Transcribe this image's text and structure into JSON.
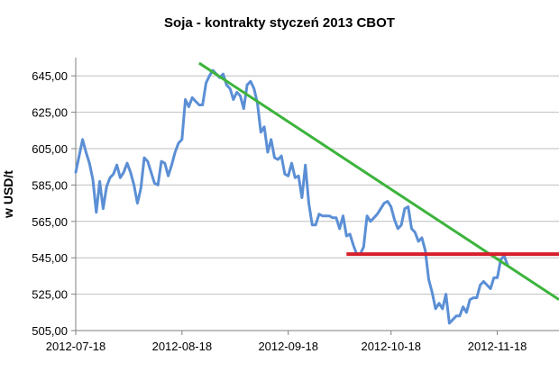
{
  "chart_data": {
    "type": "line",
    "title": "Soja - kontrakty styczeń 2013 CBOT",
    "xlabel": "",
    "ylabel": "w USD/t",
    "ylim": [
      505,
      655
    ],
    "yticks": [
      "645,00",
      "625,00",
      "605,00",
      "585,00",
      "565,00",
      "545,00",
      "525,00",
      "505,00"
    ],
    "ytick_values": [
      645,
      625,
      605,
      585,
      565,
      545,
      525,
      505
    ],
    "xticks": [
      "2012-07-18",
      "2012-08-18",
      "2012-09-18",
      "2012-10-18",
      "2012-11-18"
    ],
    "xlim": [
      "2012-07-18",
      "2012-12-06"
    ],
    "grid": "horizontal",
    "colors": {
      "price": "#5b8fd5",
      "trendline": "#3cb43c",
      "support": "#d61f2b",
      "grid": "#bfbfbf"
    },
    "series": [
      {
        "values": [
          [
            "2012-07-18",
            592
          ],
          [
            "2012-07-19",
            601
          ],
          [
            "2012-07-20",
            610
          ],
          [
            "2012-07-21",
            603
          ],
          [
            "2012-07-22",
            597
          ],
          [
            "2012-07-23",
            588
          ],
          [
            "2012-07-24",
            570
          ],
          [
            "2012-07-25",
            587
          ],
          [
            "2012-07-26",
            572
          ],
          [
            "2012-07-27",
            584
          ],
          [
            "2012-07-28",
            589
          ],
          [
            "2012-07-29",
            591
          ],
          [
            "2012-07-30",
            596
          ],
          [
            "2012-07-31",
            589
          ],
          [
            "2012-08-01",
            592
          ],
          [
            "2012-08-02",
            597
          ],
          [
            "2012-08-03",
            592
          ],
          [
            "2012-08-04",
            585
          ],
          [
            "2012-08-05",
            575
          ],
          [
            "2012-08-06",
            583
          ],
          [
            "2012-08-07",
            600
          ],
          [
            "2012-08-08",
            598
          ],
          [
            "2012-08-09",
            592
          ],
          [
            "2012-08-10",
            586
          ],
          [
            "2012-08-11",
            585
          ],
          [
            "2012-08-12",
            598
          ],
          [
            "2012-08-13",
            597
          ],
          [
            "2012-08-14",
            590
          ],
          [
            "2012-08-15",
            596
          ],
          [
            "2012-08-16",
            603
          ],
          [
            "2012-08-17",
            608
          ],
          [
            "2012-08-18",
            610
          ],
          [
            "2012-08-19",
            632
          ],
          [
            "2012-08-20",
            628
          ],
          [
            "2012-08-21",
            633
          ],
          [
            "2012-08-22",
            631
          ],
          [
            "2012-08-23",
            629
          ],
          [
            "2012-08-24",
            629
          ],
          [
            "2012-08-25",
            641
          ],
          [
            "2012-08-26",
            645
          ],
          [
            "2012-08-27",
            648
          ],
          [
            "2012-08-28",
            646
          ],
          [
            "2012-08-29",
            644
          ],
          [
            "2012-08-30",
            646
          ],
          [
            "2012-08-31",
            640
          ],
          [
            "2012-09-01",
            638
          ],
          [
            "2012-09-02",
            632
          ],
          [
            "2012-09-03",
            636
          ],
          [
            "2012-09-04",
            634
          ],
          [
            "2012-09-05",
            627
          ],
          [
            "2012-09-06",
            640
          ],
          [
            "2012-09-07",
            642
          ],
          [
            "2012-09-08",
            638
          ],
          [
            "2012-09-09",
            630
          ],
          [
            "2012-09-10",
            614
          ],
          [
            "2012-09-11",
            617
          ],
          [
            "2012-09-12",
            603
          ],
          [
            "2012-09-13",
            610
          ],
          [
            "2012-09-14",
            600
          ],
          [
            "2012-09-15",
            599
          ],
          [
            "2012-09-16",
            601
          ],
          [
            "2012-09-17",
            591
          ],
          [
            "2012-09-18",
            590
          ],
          [
            "2012-09-19",
            597
          ],
          [
            "2012-09-20",
            589
          ],
          [
            "2012-09-21",
            590
          ],
          [
            "2012-09-22",
            578
          ],
          [
            "2012-09-23",
            596
          ],
          [
            "2012-09-24",
            575
          ],
          [
            "2012-09-25",
            563
          ],
          [
            "2012-09-26",
            563
          ],
          [
            "2012-09-27",
            569
          ],
          [
            "2012-09-28",
            568
          ],
          [
            "2012-09-29",
            568
          ],
          [
            "2012-09-30",
            568
          ],
          [
            "2012-10-01",
            567
          ],
          [
            "2012-10-02",
            567
          ],
          [
            "2012-10-03",
            561
          ],
          [
            "2012-10-04",
            568
          ],
          [
            "2012-10-05",
            557
          ],
          [
            "2012-10-06",
            558
          ],
          [
            "2012-10-07",
            552
          ],
          [
            "2012-10-08",
            547
          ],
          [
            "2012-10-09",
            547
          ],
          [
            "2012-10-10",
            551
          ],
          [
            "2012-10-11",
            568
          ],
          [
            "2012-10-12",
            565
          ],
          [
            "2012-10-13",
            567
          ],
          [
            "2012-10-14",
            569
          ],
          [
            "2012-10-15",
            572
          ],
          [
            "2012-10-16",
            575
          ],
          [
            "2012-10-17",
            576
          ],
          [
            "2012-10-18",
            573
          ],
          [
            "2012-10-19",
            566
          ],
          [
            "2012-10-20",
            561
          ],
          [
            "2012-10-21",
            563
          ],
          [
            "2012-10-22",
            572
          ],
          [
            "2012-10-23",
            573
          ],
          [
            "2012-10-24",
            561
          ],
          [
            "2012-10-25",
            559
          ],
          [
            "2012-10-26",
            554
          ],
          [
            "2012-10-27",
            556
          ],
          [
            "2012-10-28",
            549
          ],
          [
            "2012-10-29",
            533
          ],
          [
            "2012-10-30",
            526
          ],
          [
            "2012-10-31",
            517
          ],
          [
            "2012-11-01",
            520
          ],
          [
            "2012-11-02",
            517
          ],
          [
            "2012-11-03",
            525
          ],
          [
            "2012-11-04",
            509
          ],
          [
            "2012-11-05",
            511
          ],
          [
            "2012-11-06",
            513
          ],
          [
            "2012-11-07",
            513
          ],
          [
            "2012-11-08",
            518
          ],
          [
            "2012-11-09",
            515
          ],
          [
            "2012-11-10",
            522
          ],
          [
            "2012-11-11",
            523
          ],
          [
            "2012-11-12",
            523
          ],
          [
            "2012-11-13",
            530
          ],
          [
            "2012-11-14",
            532
          ],
          [
            "2012-11-15",
            530
          ],
          [
            "2012-11-16",
            528
          ],
          [
            "2012-11-17",
            534
          ],
          [
            "2012-11-18",
            534
          ],
          [
            "2012-11-19",
            544
          ],
          [
            "2012-11-20",
            546
          ],
          [
            "2012-11-21",
            541
          ]
        ]
      }
    ],
    "annotations": [
      {
        "type": "trendline",
        "color": "#3cb43c",
        "from": [
          "2012-08-23",
          652
        ],
        "to": [
          "2012-12-06",
          522
        ]
      },
      {
        "type": "horizontal",
        "color": "#d61f2b",
        "value": 547,
        "from": "2012-10-05",
        "to": "2012-12-06"
      }
    ]
  }
}
